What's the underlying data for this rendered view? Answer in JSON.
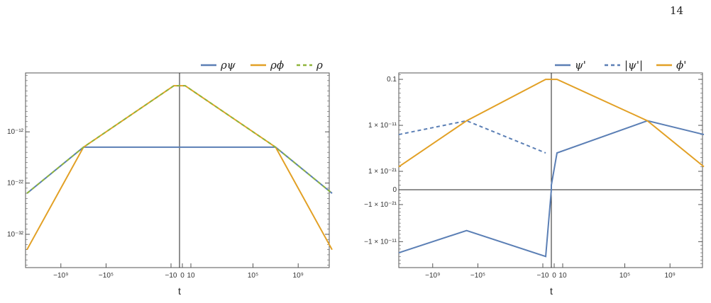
{
  "page": {
    "number": "14"
  },
  "colors": {
    "blue": "#5b7fb5",
    "orange": "#e2a025",
    "green": "#8fb53a",
    "axis": "#555555"
  },
  "chart_data": [
    {
      "type": "line",
      "xlabel": "t",
      "ylabel": "",
      "x_scale": "signed-log",
      "y_scale": "log",
      "xlim": [
        -1000000000000.0,
        1000000000000.0
      ],
      "ylim": [
        1e-39,
        1.0
      ],
      "x_ticks": [
        {
          "value": -1000000000.0,
          "label": "−10⁹"
        },
        {
          "value": -100000.0,
          "label": "−10⁵"
        },
        {
          "value": -10,
          "label": "−10"
        },
        {
          "value": 0,
          "label": "0"
        },
        {
          "value": 10,
          "label": "10"
        },
        {
          "value": 100000.0,
          "label": "10⁵"
        },
        {
          "value": 1000000000.0,
          "label": "10⁹"
        }
      ],
      "y_ticks": [
        {
          "value": 1e-12,
          "label": "10⁻¹²"
        },
        {
          "value": 1e-22,
          "label": "10⁻²²"
        },
        {
          "value": 1e-32,
          "label": "10⁻³²"
        }
      ],
      "legend": {
        "placement": "top-right"
      },
      "series": [
        {
          "name": "ρψ",
          "color": "#5b7fb5",
          "dash": "solid",
          "x": [
            -1000000000000.0,
            -10000000.0,
            10000000.0,
            1000000000000.0
          ],
          "y": [
            1e-24,
            1e-15,
            1e-15,
            1e-24
          ]
        },
        {
          "name": "ρϕ",
          "color": "#e2a025",
          "dash": "solid",
          "x": [
            -1000000000000.0,
            -10000000.0,
            -0.1,
            0.1,
            10000000.0,
            1000000000000.0
          ],
          "y": [
            1e-35,
            1e-15,
            0.001,
            0.001,
            1e-15,
            1e-35
          ]
        },
        {
          "name": "ρ",
          "color": "#8fb53a",
          "dash": "dashed",
          "x": [
            -1000000000000.0,
            -10000000.0,
            -0.1,
            0.1,
            10000000.0,
            1000000000000.0
          ],
          "y": [
            1e-24,
            1e-15,
            0.001,
            0.001,
            1e-15,
            1e-24
          ]
        }
      ]
    },
    {
      "type": "line",
      "xlabel": "t",
      "ylabel": "",
      "x_scale": "signed-log",
      "y_scale": "signed-log",
      "xlim": [
        -1000000000000.0,
        1000000000000.0
      ],
      "ylim": [
        -0.0001,
        1.0
      ],
      "x_ticks": [
        {
          "value": -1000000000.0,
          "label": "−10⁹"
        },
        {
          "value": -100000.0,
          "label": "−10⁵"
        },
        {
          "value": -10,
          "label": "−10"
        },
        {
          "value": 0,
          "label": "0"
        },
        {
          "value": 10,
          "label": "10"
        },
        {
          "value": 100000.0,
          "label": "10⁵"
        },
        {
          "value": 1000000000.0,
          "label": "10⁹"
        }
      ],
      "y_ticks": [
        {
          "value": 0.1,
          "label": "0.1"
        },
        {
          "value": 1e-11,
          "label": "1 × 10⁻¹¹"
        },
        {
          "value": 1e-21,
          "label": "1 × 10⁻²¹"
        },
        {
          "value": 0,
          "label": "0"
        },
        {
          "value": -1e-21,
          "label": "−1 × 10⁻²¹"
        },
        {
          "value": -1e-11,
          "label": "−1 × 10⁻¹¹"
        }
      ],
      "legend": {
        "placement": "top-right"
      },
      "series": [
        {
          "name": "ψ'",
          "color": "#5b7fb5",
          "dash": "solid",
          "x": [
            -1000000000000.0,
            -1000000.0,
            -0.1,
            -0.01,
            0.01,
            0.1,
            10000000.0,
            1000000000000.0
          ],
          "y": [
            -1e-08,
            -1e-14,
            -1e-07,
            -1e-26,
            1e-24,
            1e-17,
            1e-10,
            1e-13
          ]
        },
        {
          "name": "|ψ'|",
          "color": "#5b7fb5",
          "dash": "dashed",
          "x": [
            -1000000000000.0,
            -1000000.0,
            -0.1
          ],
          "y": [
            1e-13,
            1e-10,
            1e-17
          ]
        },
        {
          "name": "ϕ'",
          "color": "#e2a025",
          "dash": "solid",
          "x": [
            -1000000000000.0,
            -1000000.0,
            -0.1,
            0.1,
            10000000.0,
            1000000000000.0
          ],
          "y": [
            1e-20,
            1e-10,
            0.1,
            0.1,
            1e-10,
            1e-20
          ]
        }
      ]
    }
  ]
}
